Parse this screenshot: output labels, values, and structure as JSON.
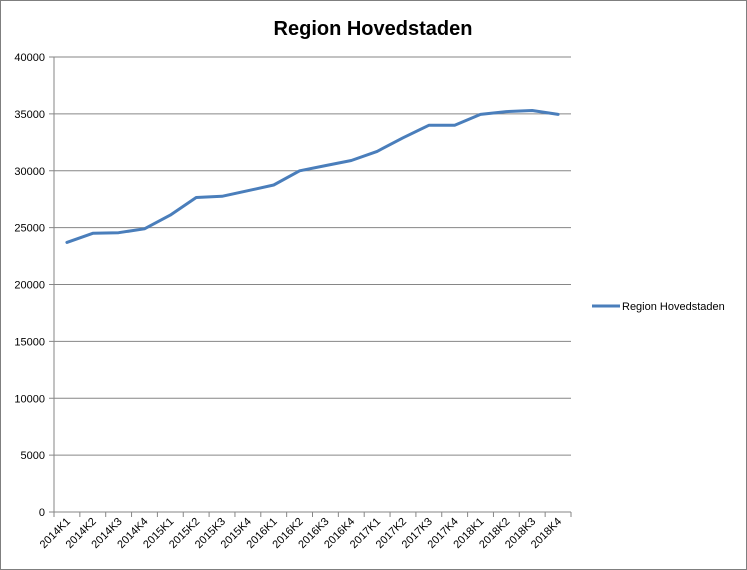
{
  "chart_data": {
    "type": "line",
    "title": "Region Hovedstaden",
    "xlabel": "",
    "ylabel": "",
    "ylim": [
      0,
      40000
    ],
    "yticks": [
      0,
      5000,
      10000,
      15000,
      20000,
      25000,
      30000,
      35000,
      40000
    ],
    "grid": true,
    "legend_position": "right",
    "categories": [
      "2014K1",
      "2014K2",
      "2014K3",
      "2014K4",
      "2015K1",
      "2015K2",
      "2015K3",
      "2015K4",
      "2016K1",
      "2016K2",
      "2016K3",
      "2016K4",
      "2017K1",
      "2017K2",
      "2017K3",
      "2017K4",
      "2018K1",
      "2018K2",
      "2018K3",
      "2018K4"
    ],
    "series": [
      {
        "name": "Region Hovedstaden",
        "color": "#4a7ebb",
        "values": [
          23700,
          24500,
          24550,
          24900,
          26100,
          27650,
          27750,
          28250,
          28750,
          30000,
          30450,
          30900,
          31700,
          32900,
          34000,
          34000,
          34950,
          35200,
          35300,
          34950
        ]
      }
    ]
  }
}
